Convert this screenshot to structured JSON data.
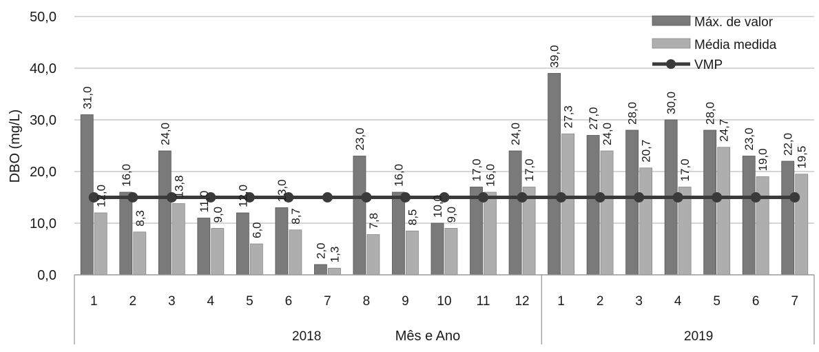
{
  "chart_data": {
    "type": "bar",
    "title": "",
    "xlabel": "Mês e Ano",
    "ylabel": "DBO (mg/L)",
    "ylim": [
      0,
      50
    ],
    "y_ticks": [
      "0,0",
      "10,0",
      "20,0",
      "30,0",
      "40,0",
      "50,0"
    ],
    "grid": true,
    "legend_position": "top-right",
    "categories": [
      "1",
      "2",
      "3",
      "4",
      "5",
      "6",
      "7",
      "8",
      "9",
      "10",
      "11",
      "12",
      "1",
      "2",
      "3",
      "4",
      "5",
      "6",
      "7"
    ],
    "groups": [
      {
        "label": "2018",
        "count": 12
      },
      {
        "label": "2019",
        "count": 7
      }
    ],
    "series": [
      {
        "name": "Máx. de valor",
        "kind": "bar",
        "color": "#7a7a7a",
        "values": [
          31.0,
          16.0,
          24.0,
          11.0,
          12.0,
          13.0,
          2.0,
          23.0,
          16.0,
          10.0,
          17.0,
          24.0,
          39.0,
          27.0,
          28.0,
          30.0,
          28.0,
          23.0,
          22.0
        ],
        "labels": [
          "31,0",
          "16,0",
          "24,0",
          "11,0",
          "12,0",
          "13,0",
          "2,0",
          "23,0",
          "16,0",
          "10,0",
          "17,0",
          "24,0",
          "39,0",
          "27,0",
          "28,0",
          "30,0",
          "28,0",
          "23,0",
          "22,0"
        ]
      },
      {
        "name": "Média medida",
        "kind": "bar",
        "color": "#aeaeae",
        "values": [
          12.0,
          8.3,
          13.8,
          9.0,
          6.0,
          8.7,
          1.3,
          7.8,
          8.5,
          9.0,
          16.0,
          17.0,
          27.3,
          24.0,
          20.7,
          17.0,
          24.7,
          19.0,
          19.5
        ],
        "labels": [
          "12,0",
          "8,3",
          "13,8",
          "9,0",
          "6,0",
          "8,7",
          "1,3",
          "7,8",
          "8,5",
          "9,0",
          "16,0",
          "17,0",
          "27,3",
          "24,0",
          "20,7",
          "17,0",
          "24,7",
          "19,0",
          "19,5"
        ]
      },
      {
        "name": "VMP",
        "kind": "line",
        "color": "#3a3a3a",
        "values": [
          15,
          15,
          15,
          15,
          15,
          15,
          15,
          15,
          15,
          15,
          15,
          15,
          15,
          15,
          15,
          15,
          15,
          15,
          15
        ]
      }
    ]
  }
}
